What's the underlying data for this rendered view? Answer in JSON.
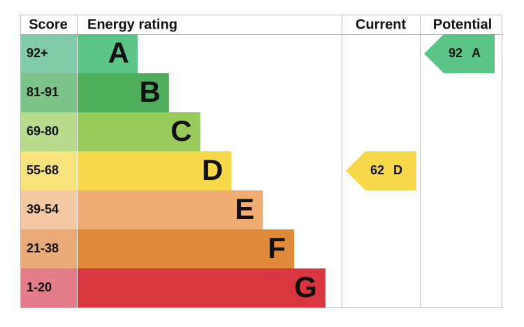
{
  "header": {
    "score": "Score",
    "energy_rating": "Energy rating",
    "current": "Current",
    "potential": "Potential"
  },
  "rows": [
    {
      "score": "92+",
      "rating": "A",
      "color": "#5bc587",
      "score_color": "#80caa7"
    },
    {
      "score": "81-91",
      "rating": "B",
      "color": "#4fae5c",
      "score_color": "#7dc48a"
    },
    {
      "score": "69-80",
      "rating": "C",
      "color": "#98cb5a",
      "score_color": "#b7dc8d"
    },
    {
      "score": "55-68",
      "rating": "D",
      "color": "#f6d84a",
      "score_color": "#f9e37c"
    },
    {
      "score": "39-54",
      "rating": "E",
      "color": "#efad74",
      "score_color": "#f4c8a2"
    },
    {
      "score": "21-38",
      "rating": "F",
      "color": "#e08a3c",
      "score_color": "#eaab79"
    },
    {
      "score": "1-20",
      "rating": "G",
      "color": "#d8363f",
      "score_color": "#e47d8a"
    }
  ],
  "current": {
    "score": "62",
    "rating": "D"
  },
  "potential": {
    "score": "92",
    "rating": "A"
  }
}
